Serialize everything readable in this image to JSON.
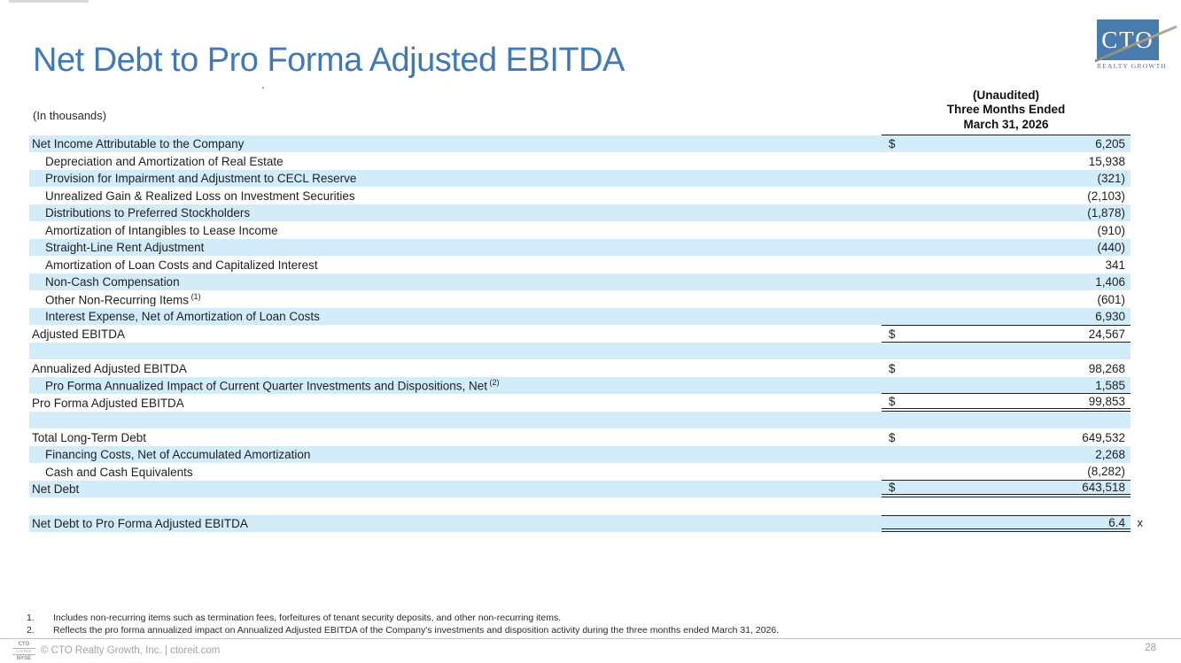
{
  "slide": {
    "title": "Net Debt to Pro Forma Adjusted EBITDA",
    "page_number": "28",
    "footer_text": "© CTO Realty Growth, Inc. | ctoreit.com",
    "stray_mark": "."
  },
  "logo": {
    "acronym": "CTO",
    "tagline": "REALTY GROWTH",
    "badge_lines": [
      "CTO",
      "LISTED",
      "NYSE"
    ]
  },
  "colors": {
    "accent_blue": "#4179b5",
    "stripe_blue": "#d3ecfa",
    "logo_blue": "#4a7bad",
    "line_dark": "#222222",
    "footer_gray": "#9a9a9a"
  },
  "table": {
    "units_label": "(In thousands)",
    "header_lines": [
      "(Unaudited)",
      "Three Months Ended",
      "March 31, 2026"
    ],
    "rows": [
      {
        "label": "Net Income Attributable to the Company",
        "dollar": "$",
        "value": "6,205",
        "shade": "blue",
        "indent": false
      },
      {
        "label": "Depreciation and Amortization of Real Estate",
        "value": "15,938",
        "shade": "white",
        "indent": true
      },
      {
        "label": "Provision for Impairment and Adjustment to CECL Reserve",
        "value": "(321)",
        "shade": "blue",
        "indent": true
      },
      {
        "label": "Unrealized Gain & Realized Loss on Investment Securities",
        "value": "(2,103)",
        "shade": "white",
        "indent": true
      },
      {
        "label": "Distributions to Preferred Stockholders",
        "value": "(1,878)",
        "shade": "blue",
        "indent": true
      },
      {
        "label": "Amortization of Intangibles to Lease Income",
        "value": "(910)",
        "shade": "white",
        "indent": true
      },
      {
        "label": "Straight-Line Rent Adjustment",
        "value": "(440)",
        "shade": "blue",
        "indent": true
      },
      {
        "label": "Amortization of Loan Costs and Capitalized Interest",
        "value": "341",
        "shade": "white",
        "indent": true
      },
      {
        "label": "Non-Cash Compensation",
        "value": "1,406",
        "shade": "blue",
        "indent": true
      },
      {
        "label": "Other Non-Recurring Items",
        "sup": "(1)",
        "value": "(601)",
        "shade": "white",
        "indent": true
      },
      {
        "label": "Interest Expense, Net of Amortization of Loan Costs",
        "value": "6,930",
        "shade": "blue",
        "indent": true
      },
      {
        "label": "Adjusted EBITDA",
        "dollar": "$",
        "value": "24,567",
        "shade": "white",
        "indent": false,
        "topline": "single",
        "bottomline": "single"
      },
      {
        "label": "",
        "value": "",
        "shade": "blue",
        "indent": false
      },
      {
        "label": "Annualized Adjusted EBITDA",
        "dollar": "$",
        "value": "98,268",
        "shade": "white",
        "indent": false
      },
      {
        "label": "Pro Forma Annualized Impact of Current Quarter Investments and Dispositions, Net",
        "sup": "(2)",
        "value": "1,585",
        "shade": "blue",
        "indent": true,
        "bottomline": "single"
      },
      {
        "label": "Pro Forma Adjusted EBITDA",
        "dollar": "$",
        "value": "99,853",
        "shade": "white",
        "indent": false,
        "bottomline": "double"
      },
      {
        "label": "",
        "value": "",
        "shade": "blue",
        "indent": false
      },
      {
        "label": "Total Long-Term Debt",
        "dollar": "$",
        "value": "649,532",
        "shade": "white",
        "indent": false
      },
      {
        "label": "Financing Costs, Net of Accumulated Amortization",
        "value": "2,268",
        "shade": "blue",
        "indent": true
      },
      {
        "label": "Cash and Cash Equivalents",
        "value": "(8,282)",
        "shade": "white",
        "indent": true,
        "bottomline": "single"
      },
      {
        "label": "Net Debt",
        "dollar": "$",
        "value": "643,518",
        "shade": "blue",
        "indent": false,
        "bottomline": "double"
      },
      {
        "label": "",
        "value": "",
        "shade": "white",
        "indent": false
      },
      {
        "label": "Net Debt to Pro Forma Adjusted EBITDA",
        "value": "6.4",
        "suffix": "x",
        "shade": "blue",
        "indent": false,
        "topline": "single",
        "bottomline": "double"
      }
    ]
  },
  "footnotes": [
    {
      "num": "1.",
      "text": "Includes non-recurring items such as termination fees, forfeitures of tenant security deposits, and other non-recurring items."
    },
    {
      "num": "2.",
      "text": "Reflects the pro forma annualized impact on Annualized Adjusted EBITDA of the Company's investments and disposition activity during the three months ended March 31, 2026."
    }
  ]
}
